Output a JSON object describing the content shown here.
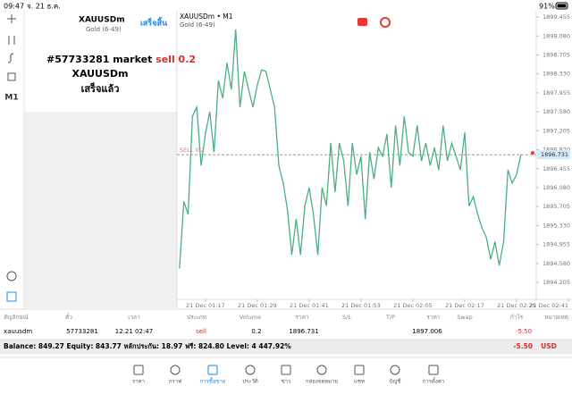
{
  "status_bar": {
    "time": "09:47",
    "date": "จ. 21 ธ.ค.",
    "battery": "91%"
  },
  "toolbar": {
    "timeframe": "M1"
  },
  "order_panel": {
    "symbol": "XAUUSDm",
    "description": "Gold (6-49)",
    "done_button": "เสร็จสิ้น",
    "message_prefix": "#57733281 market",
    "message_action": "sell 0.2",
    "message_symbol": "XAUUSDm",
    "message_status": "เสร็จแล้ว"
  },
  "chart": {
    "type": "line",
    "title": "XAUUSDm • M1",
    "subtitle": "Gold (6-49)",
    "color": "#4caf7f",
    "values": [
      1894.48,
      1895.81,
      1895.55,
      1897.49,
      1897.67,
      1896.52,
      1897.14,
      1897.58,
      1896.78,
      1898.2,
      1897.85,
      1898.55,
      1898.02,
      1899.21,
      1897.67,
      1898.38,
      1898.02,
      1897.67,
      1898.11,
      1898.41,
      1898.38,
      1898.02,
      1897.67,
      1896.52,
      1896.17,
      1895.63,
      1894.75,
      1895.46,
      1894.75,
      1895.72,
      1896.08,
      1895.55,
      1894.75,
      1896.08,
      1895.72,
      1896.96,
      1895.99,
      1896.96,
      1896.61,
      1895.72,
      1896.96,
      1896.34,
      1896.7,
      1895.46,
      1896.78,
      1896.25,
      1896.87,
      1896.7,
      1897.14,
      1896.08,
      1897.31,
      1896.52,
      1897.49,
      1896.78,
      1896.7,
      1897.31,
      1896.61,
      1896.96,
      1896.52,
      1896.87,
      1896.43,
      1897.31,
      1896.61,
      1896.96,
      1896.7,
      1896.43,
      1897.17,
      1895.72,
      1895.9,
      1895.55,
      1895.28,
      1895.1,
      1894.66,
      1895.01,
      1894.54,
      1895.01,
      1896.43,
      1896.17,
      1896.34,
      1896.731
    ],
    "xlim": [
      -1,
      90
    ],
    "xticks": [
      {
        "value": 6,
        "label": "21 Dec 01:17"
      },
      {
        "value": 18,
        "label": "21 Dec 01:29"
      },
      {
        "value": 30,
        "label": "21 Dec 01:41"
      },
      {
        "value": 42,
        "label": "21 Dec 01:53"
      },
      {
        "value": 54,
        "label": "21 Dec 02:05"
      },
      {
        "value": 66,
        "label": "21 Dec 02:17"
      },
      {
        "value": 78,
        "label": "21 Dec 02:29"
      },
      {
        "value": 90,
        "label": "21 Dec 02:41"
      }
    ],
    "ylim": [
      1893.87,
      1899.58
    ],
    "yticks": [
      {
        "value": 1899.455,
        "label": "1899.455"
      },
      {
        "value": 1899.08,
        "label": "1899.080"
      },
      1898.705,
      {
        "value": 1898.33,
        "label": "1898.330"
      },
      1897.955,
      {
        "value": 1897.58,
        "label": "1897.580"
      },
      1897.205,
      {
        "value": 1896.83,
        "label": "1896.830"
      },
      1896.455,
      {
        "value": 1896.08,
        "label": "1896.080"
      },
      1895.705,
      {
        "value": 1895.33,
        "label": "1895.330"
      },
      1894.955,
      {
        "value": 1894.58,
        "label": "1894.580"
      },
      1894.205
    ],
    "order_line": {
      "label": "SELL 0.2",
      "price": 1896.731
    }
  },
  "table": {
    "headers": [
      "สัญลักษณ์",
      "ตั๋ว",
      "เวลา",
      "ประเภท",
      "Volume",
      "ราคา",
      "S/L",
      "T/P",
      "ราคา",
      "Swap",
      "กำไร",
      "หมายเหตุ"
    ],
    "row": {
      "symbol": "xauusdm",
      "ticket": "57733281",
      "time": "12.21 02:47",
      "type": "sell",
      "volume": "0.2",
      "price": "1896.731",
      "current_price": "1897.006",
      "profit": "-5.50"
    }
  },
  "summary": {
    "text": "Balance: 849.27 Equity: 843.77 หลักประกัน: 18.97 ฟรี: 824.80 Level: 4 447.92%",
    "profit": "-5.50",
    "currency": "USD"
  },
  "nav": [
    "ราคา",
    "กราฟ",
    "การซื้อขาย",
    "ประวัติ",
    "ข่าว",
    "กล่องจดหมาย",
    "แชท",
    "บัญชี",
    "การตั้งค่า"
  ]
}
